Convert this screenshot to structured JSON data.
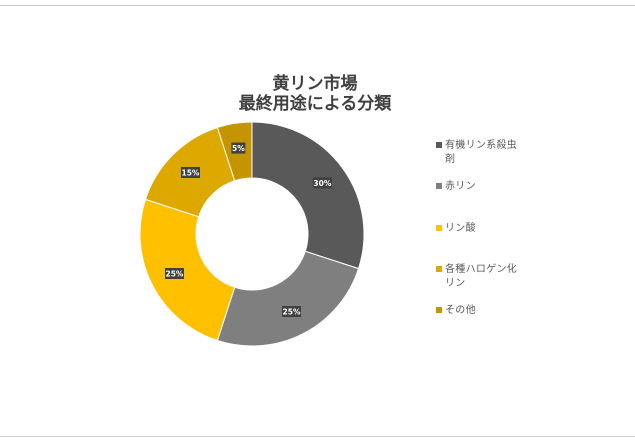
{
  "chart_data": {
    "type": "donut",
    "title_lines": [
      "黄リン市場",
      "最終用途による分類"
    ],
    "series": [
      {
        "name": "有機リン系殺虫剤",
        "value": 30,
        "label": "30%",
        "color": "#595959"
      },
      {
        "name": "赤リン",
        "value": 25,
        "label": "25%",
        "color": "#7f7f7f"
      },
      {
        "name": "リン酸",
        "value": 25,
        "label": "25%",
        "color": "#ffc000"
      },
      {
        "name": "各種ハロゲン化リン",
        "value": 15,
        "label": "15%",
        "color": "#dda900"
      },
      {
        "name": "その他",
        "value": 5,
        "label": "5%",
        "color": "#c49500"
      }
    ],
    "legend_position": "right",
    "legend_labels": [
      "有機リン系殺虫\n剤",
      "赤リン",
      "リン酸",
      "各種ハロゲン化\nリン",
      "その他"
    ]
  }
}
